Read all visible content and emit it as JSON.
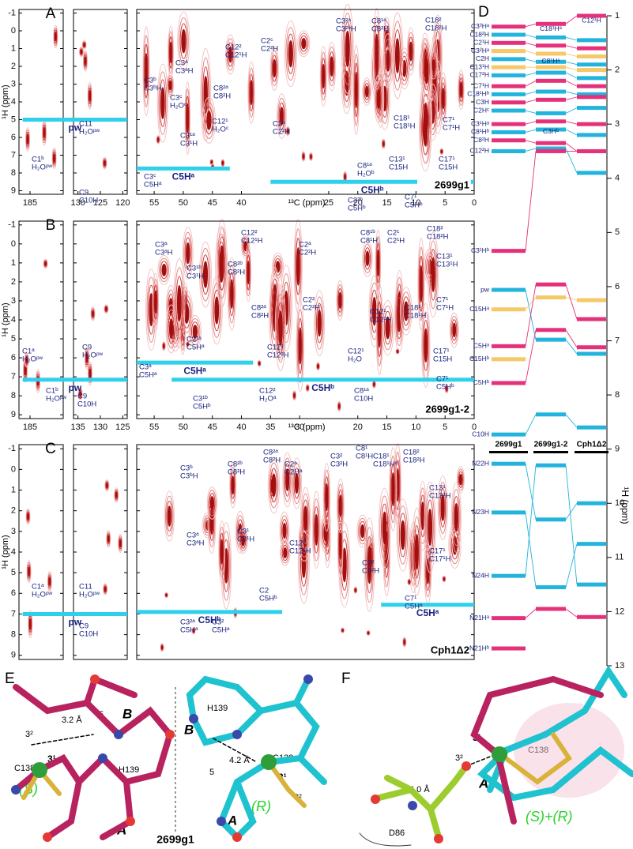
{
  "spectra": [
    {
      "letter": "A",
      "sample": "2699g1",
      "y_label": "¹H (ppm)",
      "x_label": "¹³C (ppm)",
      "ylim": [
        -1.2,
        9.2
      ],
      "yticks": [
        -1,
        0,
        1,
        2,
        3,
        4,
        5,
        6,
        7,
        8,
        9
      ],
      "segments": [
        {
          "xlim": [
            188,
            176
          ],
          "xticks": [
            185
          ]
        },
        {
          "xlim": [
            131,
            119
          ],
          "xticks": [
            130,
            125,
            120
          ]
        },
        {
          "xlim": [
            58,
            0
          ],
          "xticks": [
            55,
            50,
            45,
            40,
            25,
            20,
            15,
            10,
            5,
            0
          ]
        }
      ],
      "lines": [
        {
          "label": "pw",
          "h": 5.0,
          "c": [
            187,
            119
          ]
        },
        {
          "label": "C5Hᵃ",
          "h": 7.75,
          "c": [
            58,
            42
          ]
        },
        {
          "label": "C5Hᵇ",
          "h": 8.5,
          "c": [
            35,
            0
          ]
        }
      ],
      "peaks": [
        [
          "C1ᵇ",
          "H₂Oᵖʷ"
        ],
        [
          "C11",
          "H₂Oᵖʷ"
        ],
        [
          "C9",
          "C10H"
        ],
        [
          "C3ᵇ",
          "C3ᵇH"
        ],
        [
          "C3ᵃ",
          "C3ᵃH"
        ],
        [
          "C3ᶜ",
          "H₂Oᶜ"
        ],
        [
          "C3¹ᵃ",
          "C3¹H"
        ],
        [
          "C3ᶜ",
          "C5Hᵃ"
        ],
        [
          "C12²",
          "C12¹H"
        ],
        [
          "C8²ᵃ",
          "C8²H"
        ],
        [
          "C12¹",
          "H₂Oᶜ"
        ],
        [
          "C2ᶜ",
          "C2²H"
        ],
        [
          "C2ᵇ",
          "C2²H"
        ],
        [
          "C3²ᵃ",
          "C3²ᵇH"
        ],
        [
          "C8¹ᵃ",
          "C8²H"
        ],
        [
          "C8¹ᵃ",
          "H₂Oᵇ"
        ],
        [
          "C3²ᵇ",
          "C5Hᵇ"
        ],
        [
          "C18²",
          "C18²H"
        ],
        [
          "C18¹",
          "C18¹H"
        ],
        [
          "C13¹",
          "C15H"
        ],
        [
          "C17¹",
          "C15H"
        ],
        [
          "C7¹",
          "C5Hᵇ"
        ],
        [
          "C7¹",
          "C7¹H"
        ]
      ]
    },
    {
      "letter": "B",
      "sample": "2699g1-2",
      "y_label": "¹H (ppm)",
      "x_label": "¹³C (ppm)",
      "ylim": [
        -1.2,
        9.2
      ],
      "yticks": [
        -1,
        0,
        1,
        2,
        3,
        4,
        5,
        6,
        7,
        8,
        9
      ],
      "segments": [
        {
          "xlim": [
            188,
            176
          ],
          "xticks": [
            185
          ]
        },
        {
          "xlim": [
            136,
            124
          ],
          "xticks": [
            135,
            130,
            125
          ]
        },
        {
          "xlim": [
            58,
            0
          ],
          "xticks": [
            55,
            50,
            45,
            40,
            35,
            30,
            20,
            15,
            10,
            5,
            0
          ]
        }
      ],
      "lines": [
        {
          "label": "pw",
          "h": 7.15,
          "c": [
            187,
            124
          ]
        },
        {
          "label": "C5Hᵃ",
          "h": 6.25,
          "c": [
            58,
            38
          ]
        },
        {
          "label": "C5Hᵇ",
          "h": 7.15,
          "c": [
            52,
            0
          ]
        }
      ],
      "peaks": [
        [
          "C1ᵃ",
          "H₂Oᵖʷ"
        ],
        [
          "C1ᵇ",
          "H₂Oᵖʷ"
        ],
        [
          "C9",
          "H₂Oᵖʷ"
        ],
        [
          "C9",
          "C10H"
        ],
        [
          "C3ᵃ",
          "C3ᵃH"
        ],
        [
          "C3¹ᵇ",
          "C3¹H"
        ],
        [
          "C3¹ᵃ",
          "C5Hᵃ"
        ],
        [
          "C3ᵃ",
          "C5Hᵃ"
        ],
        [
          "C3¹ᵇ",
          "C5Hᵇ"
        ],
        [
          "C12²",
          "C12¹H"
        ],
        [
          "C8²ᵇ",
          "C8²H"
        ],
        [
          "C8²ᵃ",
          "C8²H"
        ],
        [
          "C12²",
          "C12²H"
        ],
        [
          "C12²",
          "H₂Oᵃ"
        ],
        [
          "C2ᵃ",
          "C2²H"
        ],
        [
          "C2²",
          "C2²H"
        ],
        [
          "C8¹ᵇ",
          "C8¹H"
        ],
        [
          "C12¹",
          "H₂O"
        ],
        [
          "C8¹ᵃ",
          "C10H"
        ],
        [
          "C2¹",
          "C2¹H"
        ],
        [
          "C12¹",
          "C12¹H"
        ],
        [
          "C18¹",
          "C18¹H"
        ],
        [
          "C18²",
          "C18²H"
        ],
        [
          "C13¹",
          "C13¹H"
        ],
        [
          "C7¹",
          "C7¹H"
        ],
        [
          "C17¹",
          "C15H"
        ],
        [
          "C7¹",
          "C5Hᵇ"
        ]
      ]
    },
    {
      "letter": "C",
      "sample": "Cph1Δ2",
      "y_label": "¹H (ppm)",
      "ylim": [
        -1.2,
        9.2
      ],
      "yticks": [
        -1,
        0,
        1,
        2,
        3,
        4,
        5,
        6,
        7,
        8,
        9
      ],
      "segments": [
        {
          "xlim": [
            188,
            176
          ]
        },
        {
          "xlim": [
            136,
            124
          ]
        },
        {
          "xlim": [
            58,
            0
          ]
        }
      ],
      "lines": [
        {
          "label": "pw",
          "h": 7.0,
          "c": [
            187,
            124
          ]
        },
        {
          "label": "C5Hᵇ",
          "h": 6.9,
          "c": [
            58,
            33
          ]
        },
        {
          "label": "C5Hᵃ",
          "h": 6.55,
          "c": [
            16,
            0
          ]
        }
      ],
      "peaks": [
        [
          "C1ᵃ",
          "H₂Oᵖʷ"
        ],
        [
          "C11",
          "H₂Oᵖʷ"
        ],
        [
          "C9",
          "C10H"
        ],
        [
          "C3ᵇ",
          "C3ᵇH"
        ],
        [
          "C3ᵃ",
          "C3ᵃH"
        ],
        [
          "C3¹",
          "C3¹H"
        ],
        [
          "C3²ᵃ",
          "C5Hᵃ"
        ],
        [
          "C3²",
          "C5Hᵃ"
        ],
        [
          "C8²ᵇ",
          "C8²H"
        ],
        [
          "C8²ᵃ",
          "C8²H"
        ],
        [
          "C2ᵃ",
          "C2Hᵃ"
        ],
        [
          "C12²",
          "C12²H"
        ],
        [
          "C2",
          "C5Hᵇ"
        ],
        [
          "C3²",
          "C3²H"
        ],
        [
          "C8¹",
          "C8¹H"
        ],
        [
          "C18¹",
          "C18¹Hᵃ"
        ],
        [
          "C2²",
          "C2²H"
        ],
        [
          "C18²",
          "C18²H"
        ],
        [
          "C13¹",
          "C13¹H"
        ],
        [
          "C17¹",
          "C17¹H"
        ],
        [
          "C7¹",
          "C5Hᵃ"
        ]
      ]
    }
  ],
  "panel_d": {
    "letter": "D",
    "y_label": "¹H (ppm)",
    "ylim": [
      1,
      13
    ],
    "yticks": [
      1,
      2,
      3,
      4,
      5,
      6,
      7,
      8,
      9,
      10,
      11,
      12,
      13
    ],
    "colors": {
      "pink": "#e5317a",
      "cyan": "#22b4dc",
      "yellow": "#f5c868"
    },
    "samples": [
      {
        "name": "2699g1"
      },
      {
        "name": "2699g1-2",
        "labels": [
          {
            "text": "C18¹Hᵃ",
            "ppm": 1.3
          },
          {
            "text": "C8¹Hᵃ",
            "ppm": 1.9
          },
          {
            "text": "C3Hᵇ",
            "ppm": 3.2
          }
        ]
      },
      {
        "name": "Cph1Δ2",
        "labels": [
          {
            "text": "C12¹H",
            "ppm": 1.15
          }
        ]
      }
    ],
    "rows": [
      {
        "label": "C3³Hᵃ",
        "color": "pink",
        "values": [
          1.2,
          1.15,
          1.0
        ]
      },
      {
        "label": "C18²H",
        "color": "cyan",
        "values": [
          1.35,
          1.4,
          1.45
        ]
      },
      {
        "label": "C2¹H",
        "color": "pink",
        "values": [
          1.5,
          1.55,
          1.6
        ]
      },
      {
        "label": "C3²Hᵃ",
        "color": "yellow",
        "values": [
          1.65,
          1.7,
          1.75
        ]
      },
      {
        "label": "C2H",
        "color": "cyan",
        "values": [
          1.8,
          1.85,
          1.9
        ]
      },
      {
        "label": "C13¹H",
        "color": "yellow",
        "values": [
          1.95,
          1.95,
          2.0
        ]
      },
      {
        "label": "C17²H",
        "color": "cyan",
        "values": [
          2.1,
          2.05,
          2.15
        ]
      },
      {
        "label": "C7¹H",
        "color": "pink",
        "values": [
          2.3,
          2.2,
          2.3
        ]
      },
      {
        "label": "C18¹Hᵇ",
        "color": "cyan",
        "values": [
          2.45,
          2.4,
          2.45
        ]
      },
      {
        "label": "C3H",
        "color": "pink",
        "values": [
          2.6,
          2.55,
          2.5
        ]
      },
      {
        "label": "C2Hᶜ",
        "color": "cyan",
        "values": [
          2.75,
          2.8,
          2.7
        ]
      },
      {
        "label": "C3¹Hᵃ",
        "color": "pink",
        "values": [
          3.0,
          2.95,
          3.0
        ]
      },
      {
        "label": "C8¹Hᵇ",
        "color": "cyan",
        "values": [
          3.15,
          3.1,
          3.2
        ]
      },
      {
        "label": "C8²H",
        "color": "pink",
        "values": [
          3.3,
          3.35,
          3.5
        ]
      },
      {
        "label": "C12²H",
        "color": "cyan",
        "values": [
          3.5,
          3.45,
          3.9
        ]
      },
      {
        "label": "C3¹Hᵇ",
        "color": "pink",
        "values": [
          5.34,
          3.5,
          3.5
        ]
      },
      {
        "label": "pw",
        "color": "cyan",
        "values": [
          6.06,
          6.98,
          7.24
        ]
      },
      {
        "label": "C15Hᵃ",
        "color": "yellow",
        "values": [
          6.42,
          6.2,
          6.25
        ]
      },
      {
        "label": "C5Hᵃ",
        "color": "pink",
        "values": [
          7.1,
          5.96,
          6.6
        ]
      },
      {
        "label": "C15Hᵇ",
        "color": "yellow",
        "values": [
          7.34,
          null,
          null
        ]
      },
      {
        "label": "C5Hᵇ",
        "color": "pink",
        "values": [
          7.78,
          6.8,
          7.12
        ]
      },
      {
        "label": "C10H",
        "color": "cyan",
        "values": [
          8.73,
          8.36,
          8.6
        ]
      },
      {
        "label": "N22H",
        "color": "cyan",
        "values": [
          9.27,
          10.3,
          10.0
        ]
      },
      {
        "label": "N23H",
        "color": "cyan",
        "values": [
          10.17,
          11.55,
          10.75
        ]
      },
      {
        "label": "N24H",
        "color": "cyan",
        "values": [
          11.34,
          9.3,
          11.5
        ]
      },
      {
        "label": "N21Hᵃ",
        "color": "pink",
        "values": [
          12.12,
          11.95,
          12.1
        ]
      },
      {
        "label": "N21Hᵇ",
        "color": "pink",
        "values": [
          12.68,
          null,
          null
        ]
      }
    ]
  },
  "panel_e": {
    "letter": "E",
    "sample": "2699g1",
    "labels": [
      "3²",
      "3.2 Å",
      "5",
      "B",
      "C138",
      "3¹",
      "(S)",
      "H139",
      "A",
      "H139",
      "B",
      "5",
      "4.2 Å",
      "C138",
      "3¹",
      "3²",
      "A",
      "(R)"
    ]
  },
  "panel_f": {
    "letter": "F",
    "labels": [
      "3²",
      "3¹",
      "C138",
      "4.0 Å",
      "A",
      "(S)+(R)",
      "D86"
    ]
  }
}
